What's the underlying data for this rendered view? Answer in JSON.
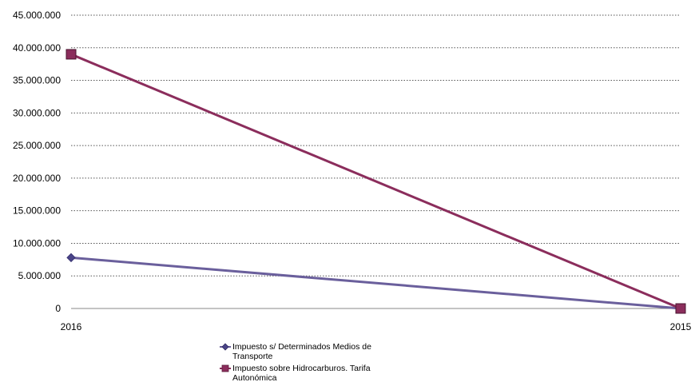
{
  "chart_data": {
    "type": "line",
    "categories": [
      "2016",
      "2015"
    ],
    "series": [
      {
        "name": "Impuesto s/ Determinados Medios de Transporte",
        "values": [
          7800000,
          0
        ],
        "color": "#6a5f9c",
        "marker": "diamond",
        "marker_color": "#3b3575"
      },
      {
        "name": "Impuesto sobre Hidrocarburos. Tarifa Autonómica",
        "values": [
          39000000,
          0
        ],
        "color": "#8b2d5c",
        "marker": "square",
        "marker_color": "#8b2d5c"
      }
    ],
    "y_ticks": [
      "0",
      "5.000.000",
      "10.000.000",
      "15.000.000",
      "20.000.000",
      "25.000.000",
      "30.000.000",
      "35.000.000",
      "40.000.000",
      "45.000.000"
    ],
    "ylim": [
      0,
      45000000
    ],
    "y_step": 5000000,
    "grid": true,
    "grid_style": "dotted",
    "legend_position": "bottom",
    "title": "",
    "xlabel": "",
    "ylabel": ""
  }
}
